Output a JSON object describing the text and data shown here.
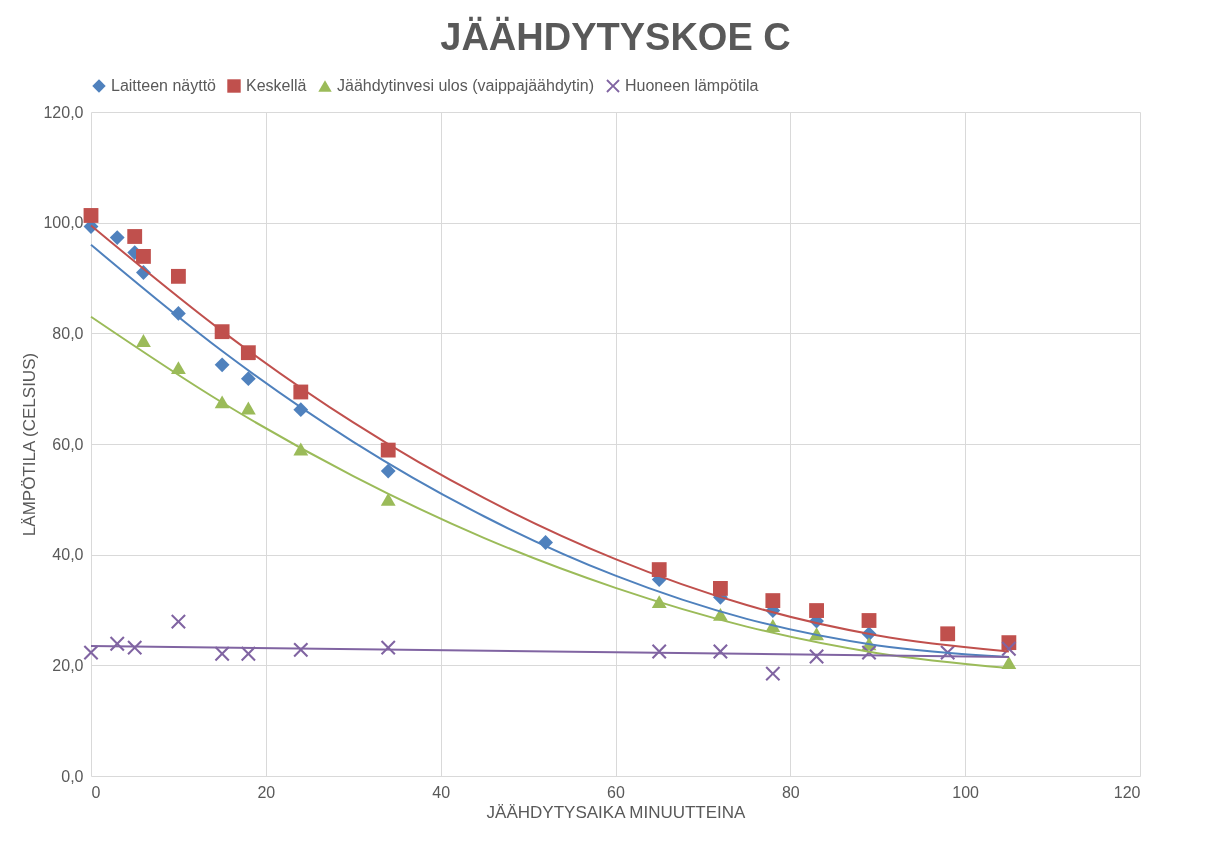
{
  "chart_data": {
    "type": "scatter",
    "title": "JÄÄHDYTYSKOE C",
    "xlabel": "JÄÄHDYTYSAIKA MINUUTTEINA",
    "ylabel": "LÄMPÖTILA (CELSIUS)",
    "xlim": [
      0,
      120
    ],
    "xticks": [
      0,
      20,
      40,
      60,
      80,
      100,
      120
    ],
    "ylim": [
      0,
      120
    ],
    "yticks": [
      {
        "value": 0,
        "label": "0,0"
      },
      {
        "value": 20,
        "label": "20,0"
      },
      {
        "value": 40,
        "label": "40,0"
      },
      {
        "value": 60,
        "label": "60,0"
      },
      {
        "value": 80,
        "label": "80,0"
      },
      {
        "value": 100,
        "label": "100,0"
      },
      {
        "value": 120,
        "label": "120,0"
      }
    ],
    "grid": true,
    "legend": "top",
    "series": [
      {
        "name": "Laitteen näyttö",
        "color": "#4f81bd",
        "marker": "diamond",
        "x": [
          0,
          3,
          5,
          6,
          10,
          15,
          18,
          24,
          34,
          52,
          65,
          72,
          78,
          83,
          89
        ],
        "values": [
          99.3,
          97.3,
          94.6,
          91.0,
          83.6,
          74.3,
          71.8,
          66.2,
          55.1,
          42.2,
          35.5,
          32.3,
          29.9,
          28.0,
          25.7
        ]
      },
      {
        "name": "Keskellä",
        "color": "#c0504d",
        "marker": "square",
        "x": [
          0,
          5,
          6,
          10,
          15,
          18,
          24,
          34,
          65,
          72,
          78,
          83,
          89,
          98,
          105
        ],
        "values": [
          101.3,
          97.5,
          93.9,
          90.3,
          80.3,
          76.5,
          69.4,
          58.9,
          37.3,
          33.9,
          31.7,
          29.9,
          28.1,
          25.7,
          24.1
        ]
      },
      {
        "name": "Jäähdytinvesi ulos (vaippajäähdytin)",
        "color": "#9bbb59",
        "marker": "triangle",
        "x": [
          6,
          10,
          15,
          18,
          24,
          34,
          65,
          72,
          78,
          83,
          89,
          98,
          105
        ],
        "values": [
          78.7,
          73.8,
          67.6,
          66.5,
          59.1,
          50.0,
          31.5,
          29.2,
          27.2,
          25.7,
          23.9,
          null,
          20.5
        ]
      },
      {
        "name": "Huoneen lämpötila",
        "color": "#8064a2",
        "marker": "cross",
        "x": [
          0,
          3,
          5,
          10,
          15,
          18,
          24,
          34,
          65,
          72,
          78,
          83,
          89,
          98,
          105
        ],
        "values": [
          22.3,
          23.9,
          23.2,
          27.9,
          22.1,
          22.1,
          22.8,
          23.2,
          22.5,
          22.5,
          18.5,
          21.6,
          22.3,
          22.3,
          23.0
        ]
      },
      {
        "type": "line",
        "color": "#4f81bd",
        "x": [
          0,
          15,
          30,
          45,
          60,
          75,
          90,
          105
        ],
        "values": [
          96.0,
          76.8,
          60.4,
          46.9,
          36.2,
          28.4,
          23.6,
          21.5
        ]
      },
      {
        "type": "line",
        "color": "#c0504d",
        "x": [
          0,
          15,
          30,
          45,
          60,
          75,
          90,
          105
        ],
        "values": [
          99.5,
          80.4,
          63.9,
          50.2,
          39.2,
          30.9,
          25.4,
          22.5
        ]
      },
      {
        "type": "line",
        "color": "#9bbb59",
        "x": [
          0,
          15,
          30,
          45,
          60,
          75,
          90,
          105
        ],
        "values": [
          83.0,
          67.5,
          54.2,
          43.0,
          34.0,
          27.0,
          22.2,
          19.5
        ]
      },
      {
        "type": "line",
        "color": "#8064a2",
        "x": [
          0,
          105
        ],
        "values": [
          23.5,
          21.5
        ]
      }
    ]
  }
}
